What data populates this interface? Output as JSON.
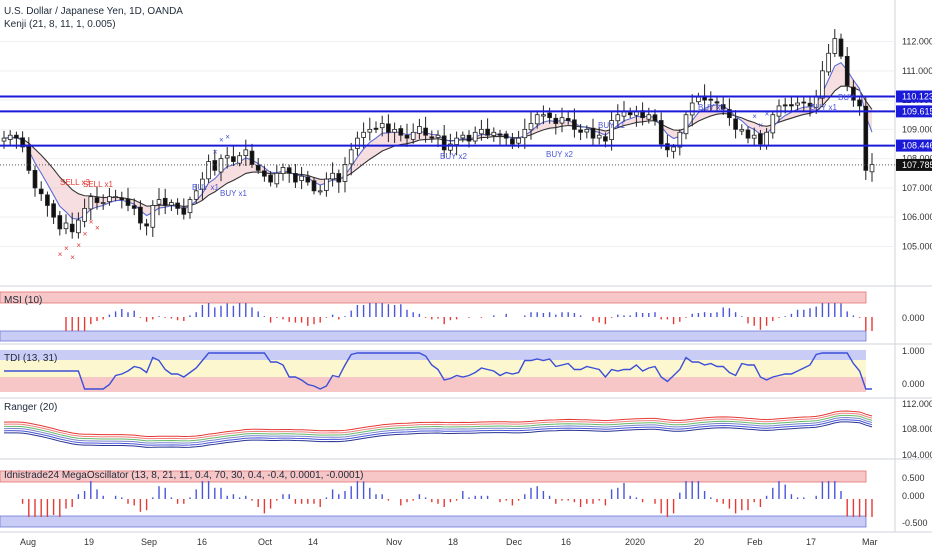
{
  "header": {
    "symbol": "U.S. Dollar / Japanese Yen, 1D, OANDA",
    "indicator": "Kenji (21, 8, 11, 1, 0.005)"
  },
  "price_axis": {
    "ticks": [
      "112.000",
      "111.000",
      "110.000",
      "109.000",
      "108.000",
      "107.000",
      "106.000",
      "105.000"
    ]
  },
  "price_labels": [
    {
      "value": "110.123",
      "color": "#1a1ad8"
    },
    {
      "value": "109.615",
      "color": "#1a1ad8"
    },
    {
      "value": "108.446",
      "color": "#1a1ad8"
    },
    {
      "value": "107.785",
      "color": "#111111"
    }
  ],
  "date_axis": [
    "Aug",
    "19",
    "Sep",
    "16",
    "Oct",
    "14",
    "Nov",
    "18",
    "Dec",
    "16",
    "2020",
    "20",
    "Feb",
    "17",
    "Mar"
  ],
  "signals": {
    "sell": [
      "SELL x3",
      "SELL x1"
    ],
    "buy": [
      "BUY x1",
      "BUY x1",
      "BUY x2",
      "BUY x2",
      "BUY x1",
      "BUY x1",
      "BUY x1",
      "BUY"
    ]
  },
  "panes": [
    {
      "title": "MSI (10)",
      "ticks": [
        "0.000"
      ]
    },
    {
      "title": "TDI (13, 31)",
      "ticks": [
        "1.000",
        "0.000"
      ]
    },
    {
      "title": "Ranger (20)",
      "ticks": [
        "112.000",
        "108.000",
        "104.000"
      ]
    },
    {
      "title": "Idnistrade24 MegaOscillator (13, 8, 21, 11, 0.4, 70, 30, 0.4, -0.4, 0.0001, -0.0001)",
      "ticks": [
        "0.500",
        "0.000",
        "-0.500"
      ]
    }
  ],
  "colors": {
    "up": "#ffffff",
    "down": "#111111",
    "level": "#1a1ad8",
    "ma_fast": "#5b6cd6",
    "ma_slow": "#333333",
    "sell": "#e53935",
    "buy": "#4a55d8"
  },
  "chart_data": {
    "type": "candlestick",
    "title": "U.S. Dollar / Japanese Yen, 1D, OANDA",
    "ylim": [
      104.4,
      112.6
    ],
    "horizontal_levels": [
      110.123,
      109.615,
      108.446
    ],
    "last_price": 107.785,
    "close_series": [
      108.7,
      108.8,
      108.7,
      108.4,
      107.6,
      107.0,
      106.8,
      106.4,
      106.0,
      105.6,
      105.8,
      105.5,
      105.9,
      106.3,
      106.7,
      106.5,
      106.5,
      106.7,
      106.7,
      106.6,
      106.4,
      106.3,
      105.8,
      105.7,
      106.4,
      106.6,
      106.4,
      106.5,
      106.3,
      106.1,
      106.6,
      106.9,
      107.3,
      107.9,
      107.6,
      108.0,
      108.1,
      107.9,
      108.1,
      108.3,
      107.8,
      107.6,
      107.4,
      107.2,
      107.5,
      107.7,
      107.5,
      107.2,
      107.4,
      107.2,
      106.9,
      106.9,
      107.3,
      107.5,
      107.2,
      107.8,
      108.3,
      108.7,
      108.9,
      109.0,
      109.0,
      109.2,
      108.9,
      109.0,
      108.8,
      108.7,
      108.9,
      109.1,
      108.8,
      108.7,
      108.8,
      108.3,
      108.5,
      108.7,
      108.8,
      108.6,
      108.9,
      109.0,
      108.8,
      108.9,
      108.8,
      108.7,
      108.5,
      108.7,
      109.0,
      109.2,
      109.5,
      109.5,
      109.4,
      109.2,
      109.4,
      109.3,
      109.0,
      108.9,
      109.0,
      108.7,
      108.8,
      108.6,
      109.3,
      109.5,
      109.6,
      109.5,
      109.6,
      109.4,
      109.5,
      109.3,
      108.5,
      108.3,
      108.4,
      108.9,
      109.5,
      109.9,
      110.1,
      110.0,
      110.0,
      109.9,
      109.7,
      109.4,
      109.0,
      109.0,
      108.7,
      108.8,
      108.5,
      108.9,
      109.5,
      109.8,
      109.8,
      109.8,
      109.9,
      109.9,
      109.8,
      110.1,
      111.0,
      111.6,
      112.1,
      111.5,
      110.5,
      110.0,
      109.8,
      107.6,
      107.8
    ],
    "series": []
  }
}
